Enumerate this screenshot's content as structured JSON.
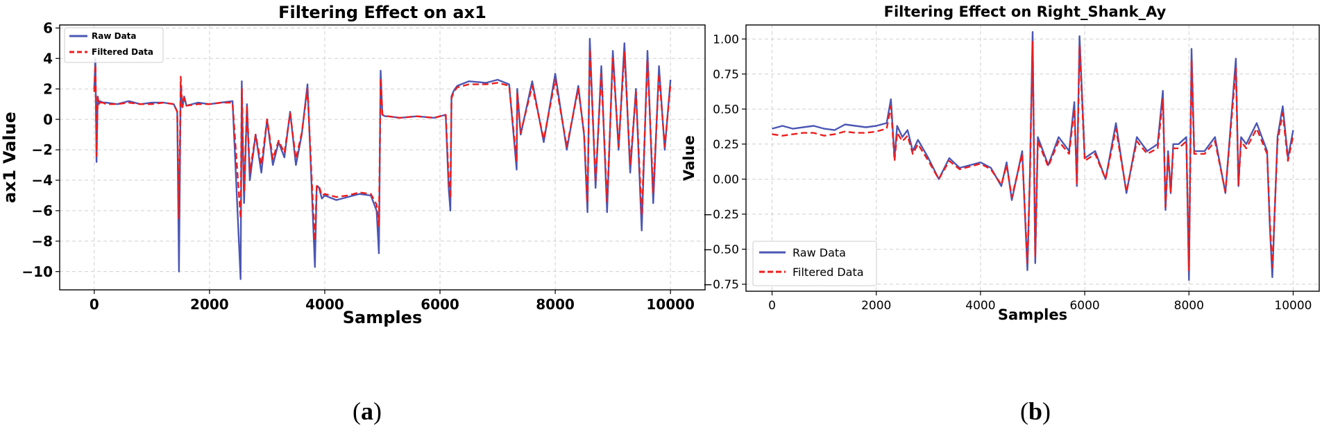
{
  "figure": {
    "captions": [
      {
        "open": "(",
        "letter": "a",
        "close": ")"
      },
      {
        "open": "(",
        "letter": "b",
        "close": ")"
      }
    ]
  },
  "chart_data": [
    {
      "type": "line",
      "title": "Filtering Effect on ax1",
      "xlabel": "Samples",
      "ylabel": "ax1 Value",
      "xlim": [
        -600,
        10600
      ],
      "ylim": [
        -11.2,
        6.2
      ],
      "xticks": [
        0,
        2000,
        4000,
        6000,
        8000,
        10000
      ],
      "yticks": [
        6,
        4,
        2,
        0,
        -2,
        -4,
        -6,
        -8,
        -10
      ],
      "grid": true,
      "legend_position": "upper-left",
      "series": [
        {
          "name": "Raw Data",
          "color": "#4b56b3",
          "style": "solid",
          "x": [
            0,
            20,
            40,
            60,
            80,
            100,
            150,
            200,
            400,
            600,
            800,
            1000,
            1200,
            1380,
            1440,
            1470,
            1500,
            1530,
            1560,
            1600,
            1800,
            2000,
            2200,
            2400,
            2540,
            2560,
            2580,
            2600,
            2650,
            2700,
            2800,
            2900,
            3000,
            3100,
            3200,
            3300,
            3400,
            3500,
            3600,
            3700,
            3800,
            3830,
            3860,
            3880,
            3900,
            3950,
            4000,
            4200,
            4400,
            4600,
            4800,
            4900,
            4940,
            4970,
            5000,
            5050,
            5100,
            5300,
            5600,
            5900,
            6100,
            6150,
            6180,
            6200,
            6230,
            6260,
            6300,
            6500,
            6800,
            7000,
            7200,
            7330,
            7340,
            7400,
            7600,
            7800,
            8000,
            8200,
            8400,
            8500,
            8560,
            8600,
            8700,
            8800,
            8900,
            9000,
            9100,
            9200,
            9300,
            9400,
            9500,
            9600,
            9700,
            9800,
            9900,
            10000
          ],
          "y": [
            2.0,
            4.0,
            -2.8,
            1.5,
            1.0,
            1.2,
            1.1,
            1.1,
            1.0,
            1.2,
            1.0,
            1.1,
            1.1,
            1.0,
            0.5,
            -10.0,
            2.2,
            0.8,
            1.5,
            0.9,
            1.1,
            1.0,
            1.1,
            1.2,
            -10.5,
            2.5,
            -2.0,
            -5.5,
            1.0,
            -4.0,
            -1.0,
            -3.5,
            0.0,
            -3.0,
            -1.5,
            -2.5,
            0.5,
            -3.0,
            -1.0,
            2.3,
            -7.0,
            -9.7,
            -4.5,
            -4.4,
            -4.5,
            -5.2,
            -5.0,
            -5.3,
            -5.1,
            -4.9,
            -5.0,
            -6.0,
            -8.8,
            3.2,
            0.3,
            0.2,
            0.2,
            0.1,
            0.2,
            0.1,
            0.3,
            -4.5,
            -6.0,
            1.5,
            1.8,
            2.0,
            2.2,
            2.5,
            2.4,
            2.6,
            2.3,
            -3.3,
            2.0,
            -1.0,
            2.5,
            -1.5,
            3.0,
            -2.0,
            2.2,
            -1.0,
            -6.1,
            5.3,
            -4.5,
            3.5,
            -6.1,
            4.5,
            -2.0,
            5.0,
            -3.5,
            2.0,
            -7.3,
            4.5,
            -5.5,
            3.5,
            -2.0,
            2.6
          ]
        },
        {
          "name": "Filtered Data",
          "color": "#ee1c1c",
          "style": "dashed",
          "x": [
            0,
            20,
            40,
            60,
            80,
            100,
            150,
            200,
            400,
            600,
            800,
            1000,
            1200,
            1380,
            1440,
            1470,
            1500,
            1530,
            1560,
            1600,
            1800,
            2000,
            2200,
            2400,
            2540,
            2560,
            2580,
            2600,
            2650,
            2700,
            2800,
            2900,
            3000,
            3100,
            3200,
            3300,
            3400,
            3500,
            3600,
            3700,
            3800,
            3830,
            3860,
            3880,
            3900,
            3950,
            4000,
            4200,
            4400,
            4600,
            4800,
            4900,
            4940,
            4970,
            5000,
            5050,
            5100,
            5300,
            5600,
            5900,
            6100,
            6150,
            6180,
            6200,
            6230,
            6260,
            6300,
            6500,
            6800,
            7000,
            7200,
            7330,
            7340,
            7400,
            7600,
            7800,
            8000,
            8200,
            8400,
            8500,
            8560,
            8600,
            8700,
            8800,
            8900,
            9000,
            9100,
            9200,
            9300,
            9400,
            9500,
            9600,
            9700,
            9800,
            9900,
            10000
          ],
          "y": [
            1.8,
            3.6,
            -2.4,
            1.4,
            1.0,
            1.1,
            1.1,
            1.0,
            1.0,
            1.1,
            1.0,
            1.0,
            1.1,
            1.0,
            0.5,
            -6.5,
            2.8,
            0.8,
            1.4,
            0.9,
            1.0,
            1.0,
            1.1,
            1.1,
            -6.5,
            2.0,
            -1.8,
            -4.8,
            0.9,
            -3.5,
            -1.0,
            -3.0,
            0.0,
            -2.6,
            -1.4,
            -2.2,
            0.4,
            -2.6,
            -0.9,
            2.0,
            -6.0,
            -8.0,
            -4.4,
            -4.3,
            -4.4,
            -5.0,
            -4.9,
            -5.1,
            -5.0,
            -4.8,
            -4.9,
            -5.6,
            -7.0,
            2.7,
            0.3,
            0.2,
            0.2,
            0.1,
            0.2,
            0.1,
            0.3,
            -3.8,
            -5.2,
            1.4,
            1.7,
            1.9,
            2.1,
            2.3,
            2.3,
            2.4,
            2.2,
            -2.8,
            1.8,
            -0.9,
            2.2,
            -1.3,
            2.6,
            -1.8,
            2.0,
            -0.9,
            -5.5,
            4.6,
            -4.0,
            3.0,
            -5.4,
            4.0,
            -1.8,
            4.4,
            -3.0,
            1.8,
            -6.3,
            3.9,
            -4.8,
            3.0,
            -1.8,
            2.3
          ]
        }
      ]
    },
    {
      "type": "line",
      "title": "Filtering Effect on Right_Shank_Ay",
      "xlabel": "Samples",
      "ylabel": "Value",
      "xlim": [
        -500,
        10500
      ],
      "ylim": [
        -0.8,
        1.1
      ],
      "xticks": [
        0,
        2000,
        4000,
        6000,
        8000,
        10000
      ],
      "yticks": [
        1.0,
        0.75,
        0.5,
        0.25,
        0.0,
        -0.25,
        -0.5,
        -0.75
      ],
      "grid": true,
      "legend_position": "lower-left",
      "series": [
        {
          "name": "Raw Data",
          "color": "#4b56b3",
          "style": "solid",
          "x": [
            0,
            200,
            400,
            600,
            800,
            1000,
            1200,
            1400,
            1600,
            1800,
            2000,
            2200,
            2280,
            2350,
            2400,
            2500,
            2600,
            2700,
            2800,
            3000,
            3200,
            3400,
            3600,
            3800,
            4000,
            4200,
            4400,
            4500,
            4600,
            4800,
            4900,
            4950,
            5000,
            5050,
            5100,
            5300,
            5500,
            5700,
            5800,
            5850,
            5900,
            6000,
            6200,
            6400,
            6600,
            6800,
            7000,
            7200,
            7400,
            7500,
            7550,
            7600,
            7650,
            7700,
            7800,
            7950,
            8000,
            8050,
            8100,
            8300,
            8500,
            8700,
            8900,
            8950,
            9000,
            9100,
            9300,
            9500,
            9550,
            9600,
            9700,
            9800,
            9900,
            10000
          ],
          "y": [
            0.36,
            0.38,
            0.36,
            0.37,
            0.38,
            0.36,
            0.35,
            0.39,
            0.38,
            0.37,
            0.38,
            0.4,
            0.57,
            0.15,
            0.38,
            0.3,
            0.35,
            0.2,
            0.28,
            0.15,
            0.0,
            0.15,
            0.08,
            0.1,
            0.12,
            0.08,
            -0.05,
            0.12,
            -0.15,
            0.2,
            -0.65,
            0.05,
            1.05,
            -0.6,
            0.3,
            0.1,
            0.3,
            0.2,
            0.55,
            -0.05,
            1.02,
            0.15,
            0.2,
            0.0,
            0.4,
            -0.1,
            0.3,
            0.2,
            0.25,
            0.63,
            -0.22,
            0.2,
            -0.1,
            0.25,
            0.25,
            0.3,
            -0.72,
            0.93,
            0.2,
            0.2,
            0.3,
            -0.1,
            0.86,
            -0.05,
            0.3,
            0.25,
            0.4,
            0.2,
            -0.32,
            -0.7,
            0.3,
            0.52,
            0.15,
            0.35
          ]
        },
        {
          "name": "Filtered Data",
          "color": "#ee1c1c",
          "style": "dashed",
          "x": [
            0,
            200,
            400,
            600,
            800,
            1000,
            1200,
            1400,
            1600,
            1800,
            2000,
            2200,
            2280,
            2350,
            2400,
            2500,
            2600,
            2700,
            2800,
            3000,
            3200,
            3400,
            3600,
            3800,
            4000,
            4200,
            4400,
            4500,
            4600,
            4800,
            4900,
            4950,
            5000,
            5050,
            5100,
            5300,
            5500,
            5700,
            5800,
            5850,
            5900,
            6000,
            6200,
            6400,
            6600,
            6800,
            7000,
            7200,
            7400,
            7500,
            7550,
            7600,
            7650,
            7700,
            7800,
            7950,
            8000,
            8050,
            8100,
            8300,
            8500,
            8700,
            8900,
            8950,
            9000,
            9100,
            9300,
            9500,
            9550,
            9600,
            9700,
            9800,
            9900,
            10000
          ],
          "y": [
            0.32,
            0.31,
            0.32,
            0.33,
            0.33,
            0.31,
            0.32,
            0.34,
            0.33,
            0.33,
            0.34,
            0.36,
            0.52,
            0.13,
            0.33,
            0.27,
            0.31,
            0.18,
            0.25,
            0.13,
            0.0,
            0.13,
            0.07,
            0.09,
            0.11,
            0.07,
            -0.04,
            0.1,
            -0.13,
            0.18,
            -0.6,
            0.04,
            0.98,
            -0.55,
            0.27,
            0.09,
            0.27,
            0.18,
            0.5,
            -0.04,
            0.95,
            0.13,
            0.18,
            0.0,
            0.36,
            -0.09,
            0.27,
            0.18,
            0.22,
            0.57,
            -0.2,
            0.18,
            -0.09,
            0.22,
            0.22,
            0.27,
            -0.65,
            0.85,
            0.18,
            0.18,
            0.27,
            -0.09,
            0.79,
            -0.04,
            0.27,
            0.22,
            0.36,
            0.18,
            -0.28,
            -0.63,
            0.27,
            0.47,
            0.13,
            0.31
          ]
        }
      ]
    }
  ]
}
